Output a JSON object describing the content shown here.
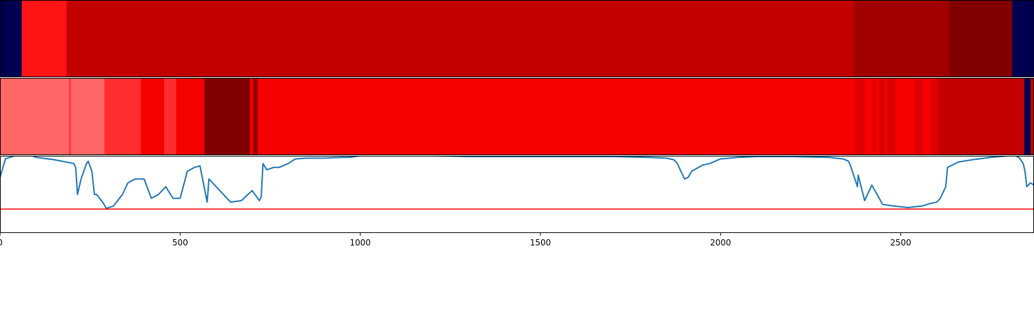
{
  "chart_data": [
    {
      "type": "heatmap",
      "segments": [
        {
          "start": 0,
          "end": 60,
          "color": "#000050"
        },
        {
          "start": 60,
          "end": 185,
          "color": "#ff1414"
        },
        {
          "start": 185,
          "end": 2370,
          "color": "#c20000"
        },
        {
          "start": 2370,
          "end": 2635,
          "color": "#a00000"
        },
        {
          "start": 2635,
          "end": 2810,
          "color": "#800000"
        },
        {
          "start": 2810,
          "end": 2870,
          "color": "#000050"
        }
      ]
    },
    {
      "type": "heatmap",
      "segments": [
        {
          "start": 0,
          "end": 191,
          "color": "#ff6666"
        },
        {
          "start": 191,
          "end": 197,
          "color": "#ff3a3a"
        },
        {
          "start": 197,
          "end": 290,
          "color": "#ff6666"
        },
        {
          "start": 290,
          "end": 391,
          "color": "#ff2d2d"
        },
        {
          "start": 391,
          "end": 455,
          "color": "#f60000"
        },
        {
          "start": 455,
          "end": 489,
          "color": "#ff2d2d"
        },
        {
          "start": 489,
          "end": 567,
          "color": "#f60000"
        },
        {
          "start": 567,
          "end": 694,
          "color": "#800000"
        },
        {
          "start": 694,
          "end": 702,
          "color": "#f60000"
        },
        {
          "start": 702,
          "end": 716,
          "color": "#990000"
        },
        {
          "start": 716,
          "end": 2374,
          "color": "#f60000"
        },
        {
          "start": 2374,
          "end": 2399,
          "color": "#dc0000"
        },
        {
          "start": 2399,
          "end": 2422,
          "color": "#f60000"
        },
        {
          "start": 2422,
          "end": 2431,
          "color": "#dc0000"
        },
        {
          "start": 2431,
          "end": 2441,
          "color": "#f60000"
        },
        {
          "start": 2441,
          "end": 2456,
          "color": "#dc0000"
        },
        {
          "start": 2456,
          "end": 2462,
          "color": "#f60000"
        },
        {
          "start": 2462,
          "end": 2485,
          "color": "#dc0000"
        },
        {
          "start": 2485,
          "end": 2541,
          "color": "#f60000"
        },
        {
          "start": 2541,
          "end": 2562,
          "color": "#dc0000"
        },
        {
          "start": 2562,
          "end": 2584,
          "color": "#f60000"
        },
        {
          "start": 2584,
          "end": 2605,
          "color": "#dc0000"
        },
        {
          "start": 2605,
          "end": 2843,
          "color": "#c20000"
        },
        {
          "start": 2843,
          "end": 2860,
          "color": "#000050"
        },
        {
          "start": 2860,
          "end": 2870,
          "color": "#c20000"
        }
      ]
    },
    {
      "type": "line",
      "xlim": [
        0,
        2870
      ],
      "ylim": [
        0,
        1
      ],
      "xticks": [
        0,
        500,
        1000,
        1500,
        2000,
        2500
      ],
      "xtick_labels": [
        "0",
        "500",
        "1000",
        "1500",
        "2000",
        "2500"
      ],
      "series_color": "#1f77b4",
      "threshold": 0.31,
      "threshold_color": "#ff0000",
      "x": [
        0,
        15,
        40,
        80,
        100,
        150,
        205,
        210,
        215,
        225,
        240,
        245,
        255,
        262,
        268,
        285,
        295,
        315,
        340,
        355,
        375,
        400,
        420,
        440,
        460,
        480,
        500,
        520,
        540,
        555,
        575,
        580,
        600,
        640,
        670,
        700,
        720,
        725,
        730,
        740,
        760,
        775,
        790,
        800,
        820,
        850,
        900,
        950,
        970,
        1000,
        1100,
        1200,
        1300,
        1400,
        1500,
        1600,
        1700,
        1800,
        1850,
        1870,
        1880,
        1890,
        1900,
        1910,
        1920,
        1950,
        1970,
        2000,
        2050,
        2100,
        2200,
        2300,
        2340,
        2355,
        2360,
        2380,
        2382,
        2390,
        2400,
        2420,
        2450,
        2480,
        2500,
        2520,
        2540,
        2560,
        2580,
        2600,
        2610,
        2625,
        2630,
        2660,
        2700,
        2750,
        2800,
        2820,
        2830,
        2840,
        2845,
        2850,
        2860,
        2870
      ],
      "y": [
        0.72,
        0.96,
        1.0,
        1.02,
        0.98,
        0.95,
        0.9,
        0.85,
        0.5,
        0.7,
        0.9,
        0.93,
        0.8,
        0.5,
        0.5,
        0.4,
        0.32,
        0.35,
        0.5,
        0.65,
        0.7,
        0.7,
        0.45,
        0.5,
        0.6,
        0.45,
        0.45,
        0.8,
        0.85,
        0.87,
        0.4,
        0.7,
        0.6,
        0.4,
        0.42,
        0.55,
        0.42,
        0.47,
        0.9,
        0.82,
        0.85,
        0.85,
        0.88,
        0.9,
        0.96,
        0.97,
        0.97,
        0.98,
        0.98,
        1.0,
        1.0,
        1.0,
        0.99,
        0.99,
        0.99,
        0.99,
        0.99,
        0.98,
        0.97,
        0.95,
        0.9,
        0.8,
        0.7,
        0.72,
        0.8,
        0.88,
        0.9,
        0.96,
        0.98,
        0.99,
        0.99,
        0.98,
        0.96,
        0.93,
        0.88,
        0.6,
        0.75,
        0.6,
        0.42,
        0.62,
        0.37,
        0.35,
        0.34,
        0.33,
        0.34,
        0.35,
        0.38,
        0.4,
        0.45,
        0.6,
        0.85,
        0.92,
        0.95,
        0.98,
        1.0,
        1.0,
        0.97,
        0.9,
        0.8,
        0.6,
        0.65,
        0.62
      ]
    }
  ]
}
